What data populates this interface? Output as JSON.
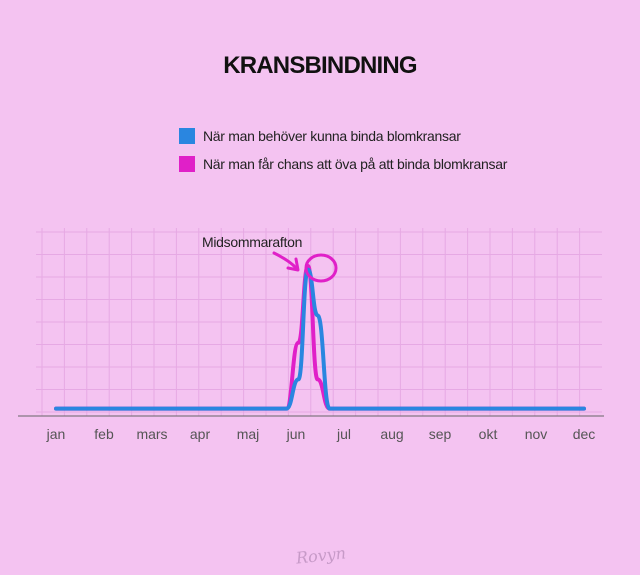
{
  "chart_data": {
    "type": "line",
    "title": "KRANSBINDNING",
    "xlabel": "",
    "ylabel": "",
    "categories": [
      "jan",
      "feb",
      "mars",
      "apr",
      "maj",
      "jun",
      "jul",
      "aug",
      "sep",
      "okt",
      "nov",
      "dec"
    ],
    "x": [
      1,
      5.4,
      5.8,
      6.05,
      6.25,
      6.45,
      6.7,
      7.0,
      12
    ],
    "ylim": [
      0,
      100
    ],
    "grid": true,
    "legend_position": "top",
    "series": [
      {
        "name": "När man behöver kunna binda blomkransar",
        "color": "#2a86e0",
        "values": [
          4,
          4,
          4,
          20,
          80,
          55,
          4,
          4,
          4
        ]
      },
      {
        "name": "När man får chans att öva på att binda blomkransar",
        "color": "#e020c8",
        "values": [
          4,
          4,
          4,
          40,
          82,
          20,
          4,
          4,
          4
        ]
      }
    ],
    "annotations": [
      {
        "text": "Midsommarafton",
        "x": 6.25,
        "y": 82
      }
    ]
  },
  "signature": "Rovyn",
  "colors": {
    "background": "#f4c3f1",
    "grid": "#e6a9e4",
    "axis": "#666666",
    "annotation": "#e020c8"
  }
}
